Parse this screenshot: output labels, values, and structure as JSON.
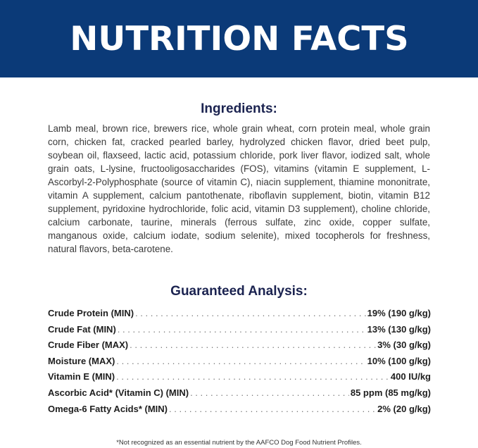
{
  "banner": {
    "title": "NUTRITION FACTS",
    "background_color": "#0b3a78"
  },
  "ingredients": {
    "heading": "Ingredients:",
    "text": "Lamb meal, brown rice, brewers rice, whole grain wheat, corn protein meal, whole grain corn, chicken fat, cracked pearled barley, hydrolyzed chicken flavor, dried beet pulp, soybean oil, flaxseed, lactic acid, potassium chloride, pork liver flavor, iodized salt, whole grain oats, L-lysine, fructooligosaccharides (FOS), vitamins (vitamin E supplement, L-Ascorbyl-2-Polyphosphate (source of vitamin C), niacin supplement, thiamine mononitrate, vitamin A supplement, calcium pantothenate, riboflavin supplement, biotin, vitamin B12 supplement, pyridoxine hydrochloride, folic acid, vitamin D3 supplement), choline chloride, calcium carbonate, taurine, minerals (ferrous sulfate, zinc oxide, copper sulfate, manganous oxide, calcium iodate, sodium selenite), mixed tocopherols for freshness, natural flavors, beta-carotene."
  },
  "analysis": {
    "heading": "Guaranteed Analysis:",
    "rows": [
      {
        "label": "Crude Protein (MIN)",
        "value": "19% (190 g/kg)"
      },
      {
        "label": "Crude Fat (MIN)",
        "value": "13% (130 g/kg)"
      },
      {
        "label": "Crude Fiber (MAX)",
        "value": "3% (30 g/kg)"
      },
      {
        "label": "Moisture (MAX)",
        "value": "10% (100 g/kg)"
      },
      {
        "label": "Vitamin E (MIN)",
        "value": "400 IU/kg"
      },
      {
        "label": "Ascorbic Acid* (Vitamin C) (MIN)",
        "value": "85 ppm (85 mg/kg)"
      },
      {
        "label": "Omega-6 Fatty Acids* (MIN)",
        "value": "2% (20 g/kg)"
      }
    ]
  },
  "footnote": "*Not recognized as an essential nutrient by the AAFCO Dog Food Nutrient Profiles."
}
